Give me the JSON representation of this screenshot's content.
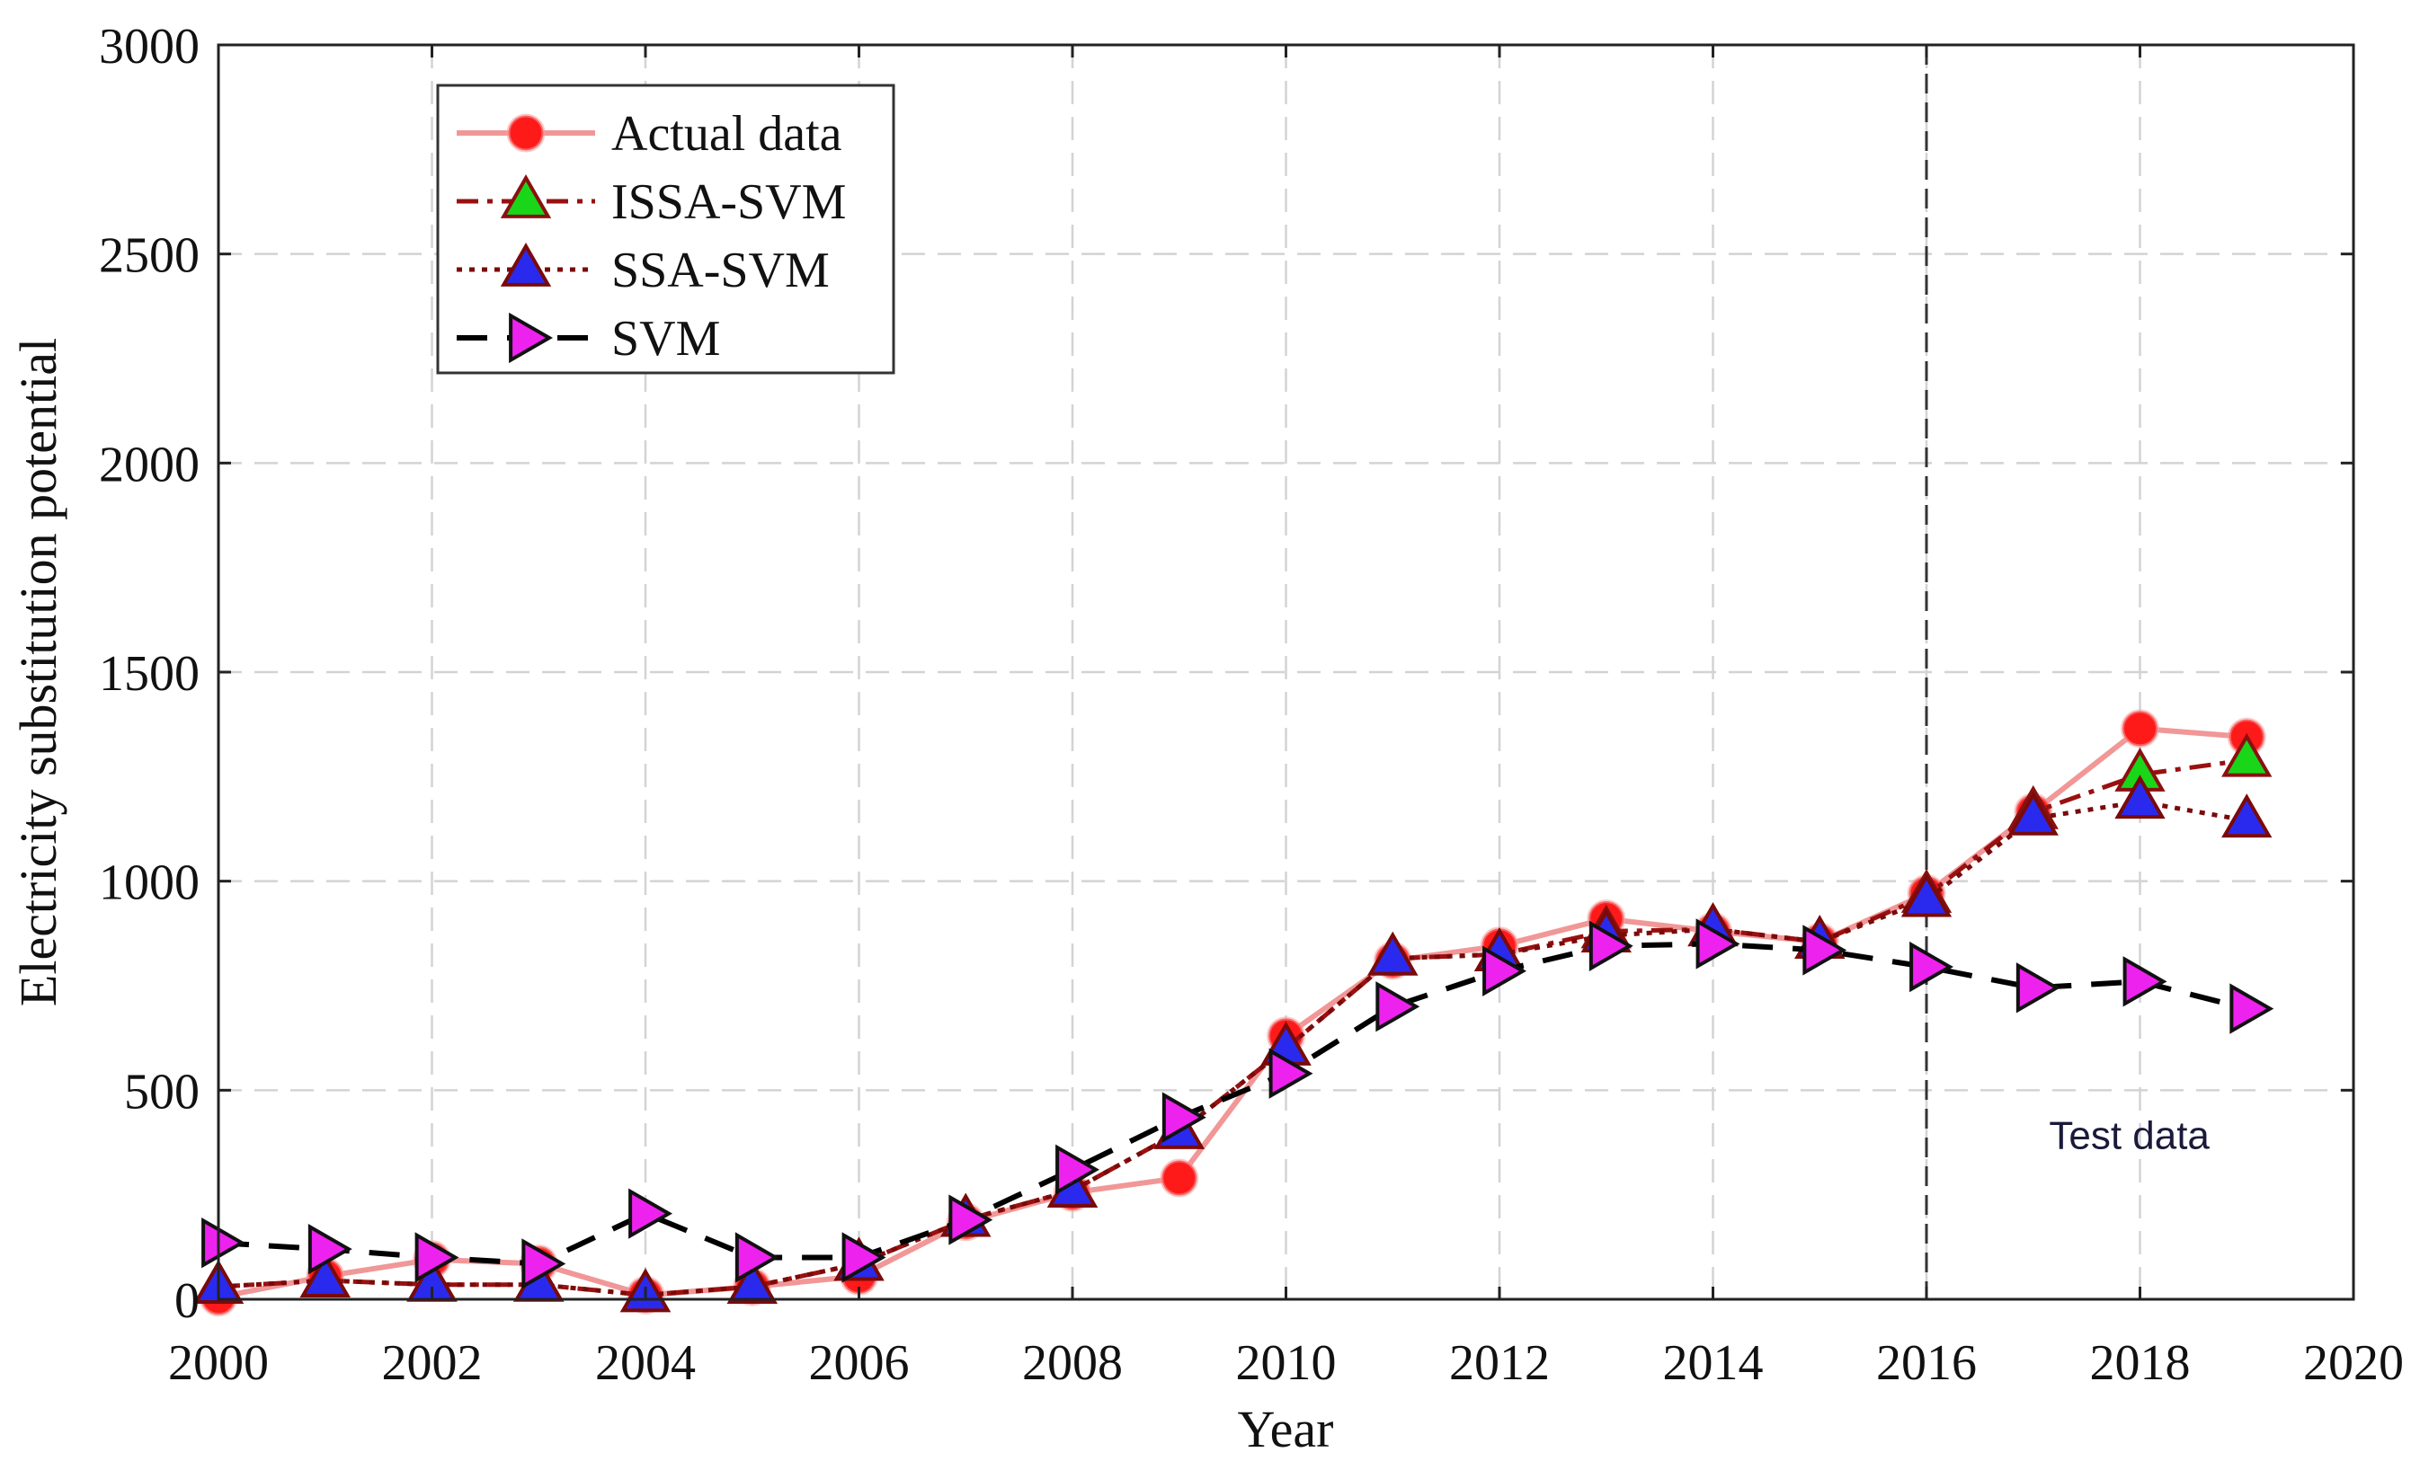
{
  "chart_data": {
    "type": "line",
    "title": "",
    "xlabel": "Year",
    "ylabel": "Electricity substitution potential",
    "xlim": [
      2000,
      2020
    ],
    "ylim": [
      0,
      3000
    ],
    "xticks": [
      2000,
      2002,
      2004,
      2006,
      2008,
      2010,
      2012,
      2014,
      2016,
      2018,
      2020
    ],
    "yticks": [
      0,
      500,
      1000,
      1500,
      2000,
      2500,
      3000
    ],
    "grid": true,
    "legend_position": "top-left",
    "x": [
      2000,
      2001,
      2002,
      2003,
      2004,
      2005,
      2006,
      2007,
      2008,
      2009,
      2010,
      2011,
      2012,
      2013,
      2014,
      2015,
      2016,
      2017,
      2018,
      2019
    ],
    "series": [
      {
        "name": "Actual data",
        "line_color": "#f08c8c",
        "marker": "circle",
        "marker_fill": "#ff1a1a",
        "values": [
          5,
          55,
          95,
          85,
          10,
          30,
          55,
          185,
          255,
          290,
          630,
          810,
          845,
          910,
          880,
          855,
          970,
          1165,
          1365,
          1345
        ]
      },
      {
        "name": "ISSA-SVM",
        "line_color": "#9a1010",
        "marker": "triangle-up",
        "marker_fill": "#19d619",
        "values": [
          30,
          45,
          35,
          35,
          10,
          30,
          85,
          190,
          260,
          400,
          600,
          815,
          825,
          880,
          885,
          855,
          965,
          1165,
          1255,
          1290
        ]
      },
      {
        "name": "SSA-SVM",
        "line_color": "#7a0a0a",
        "marker": "triangle-up",
        "marker_fill": "#2a2aee",
        "values": [
          30,
          45,
          35,
          35,
          10,
          30,
          85,
          190,
          260,
          400,
          600,
          815,
          825,
          870,
          885,
          855,
          955,
          1150,
          1190,
          1145
        ]
      },
      {
        "name": "SVM",
        "line_color": "#000000",
        "marker": "triangle-right",
        "marker_fill": "#ee22ee",
        "values": [
          135,
          120,
          100,
          85,
          205,
          100,
          100,
          190,
          310,
          435,
          540,
          700,
          785,
          845,
          850,
          835,
          795,
          745,
          760,
          695
        ]
      }
    ],
    "vertical_line": {
      "x": 2016,
      "color": "#333333"
    },
    "annotations": [
      {
        "text": "Test data",
        "x": 2017.9,
        "y": 360
      }
    ]
  }
}
